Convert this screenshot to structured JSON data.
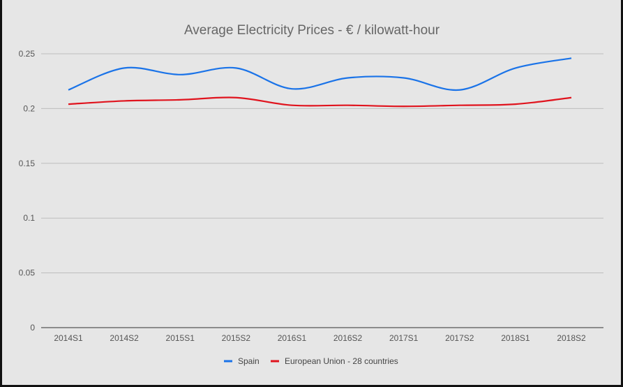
{
  "chart_data": {
    "type": "line",
    "title": "Average Electricity Prices - € / kilowatt-hour",
    "xlabel": "",
    "ylabel": "",
    "categories": [
      "2014S1",
      "2014S2",
      "2015S1",
      "2015S2",
      "2016S1",
      "2016S2",
      "2017S1",
      "2017S2",
      "2018S1",
      "2018S2"
    ],
    "ylim": [
      0,
      0.25
    ],
    "yticks": [
      "0",
      "0.05",
      "0.1",
      "0.15",
      "0.2",
      "0.25"
    ],
    "grid": true,
    "legend": "bottom",
    "smooth": true,
    "series": [
      {
        "name": "Spain",
        "color": "#1a73e8",
        "values": [
          0.217,
          0.237,
          0.231,
          0.237,
          0.218,
          0.228,
          0.228,
          0.217,
          0.237,
          0.246
        ]
      },
      {
        "name": "European Union - 28 countries",
        "color": "#e0141e",
        "values": [
          0.204,
          0.207,
          0.208,
          0.21,
          0.203,
          0.203,
          0.202,
          0.203,
          0.204,
          0.21
        ]
      }
    ]
  }
}
